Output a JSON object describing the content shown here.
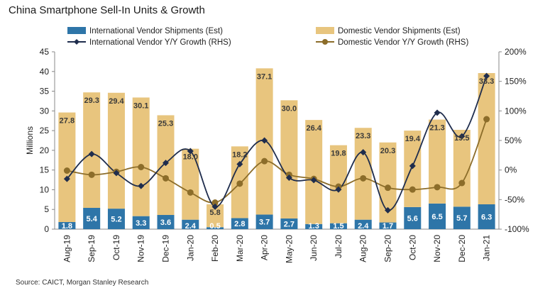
{
  "title": "China Smartphone Sell-In Units & Growth",
  "source": "Source: CAICT, Morgan Stanley Research",
  "chart_data": {
    "type": "bar",
    "stacked": true,
    "categories": [
      "Aug-19",
      "Sep-19",
      "Oct-19",
      "Nov-19",
      "Dec-19",
      "Jan-20",
      "Feb-20",
      "Mar-20",
      "Apr-20",
      "May-20",
      "Jun-20",
      "Jul-20",
      "Aug-20",
      "Sep-20",
      "Oct-20",
      "Nov-20",
      "Dec-20",
      "Jan-21"
    ],
    "ylabel": "Millions",
    "ylim": [
      0,
      45
    ],
    "yticks": [
      0,
      5,
      10,
      15,
      20,
      25,
      30,
      35,
      40,
      45
    ],
    "y2lim": [
      -100,
      200
    ],
    "y2ticks": [
      "-100%",
      "-50%",
      "0%",
      "50%",
      "100%",
      "150%",
      "200%"
    ],
    "y2tick_values": [
      -100,
      -50,
      0,
      50,
      100,
      150,
      200
    ],
    "series": [
      {
        "name": "International Vendor Shipments (Est)",
        "type": "bar",
        "color": "#2e75a8",
        "values": [
          1.8,
          5.4,
          5.2,
          3.3,
          3.6,
          2.4,
          0.5,
          2.8,
          3.7,
          2.7,
          1.3,
          1.5,
          2.4,
          1.7,
          5.6,
          6.5,
          5.7,
          6.3
        ],
        "labels": [
          "1.8",
          "5.4",
          "5.2",
          "3.3",
          "3.6",
          "2.4",
          "0.5",
          "2.8",
          "3.7",
          "2.7",
          "1.3",
          "1.5",
          "2.4",
          "1.7",
          "5.6",
          "6.5",
          "5.7",
          "6.3"
        ]
      },
      {
        "name": "Domestic Vendor Shipments (Est)",
        "type": "bar",
        "color": "#e8c57e",
        "values": [
          27.8,
          29.3,
          29.4,
          30.1,
          25.3,
          18.0,
          5.8,
          18.2,
          37.1,
          30.0,
          26.4,
          19.8,
          23.3,
          20.3,
          19.4,
          21.3,
          19.5,
          33.3
        ],
        "labels": [
          "27.8",
          "29.3",
          "29.4",
          "30.1",
          "25.3",
          "18.0",
          "5.8",
          "18.2",
          "37.1",
          "30.0",
          "26.4",
          "19.8",
          "23.3",
          "20.3",
          "19.4",
          "21.3",
          "19.5",
          "33.3"
        ]
      },
      {
        "name": "International Vendor Y/Y Growth (RHS)",
        "type": "line",
        "axis": "right",
        "color": "#1f2d4d",
        "values": [
          -15,
          27,
          -5,
          -27,
          12,
          32,
          -62,
          10,
          50,
          -13,
          -17,
          -33,
          30,
          -68,
          7,
          97,
          57,
          159
        ]
      },
      {
        "name": "Domestic Vendor Y/Y Growth (RHS)",
        "type": "line",
        "axis": "right",
        "color": "#8c6d2a",
        "values": [
          -1,
          -8,
          -3,
          5,
          -14,
          -38,
          -55,
          -23,
          15,
          -8,
          -15,
          -28,
          -14,
          -30,
          -33,
          -29,
          -22,
          86
        ]
      }
    ],
    "legend": "top",
    "grid": false
  }
}
